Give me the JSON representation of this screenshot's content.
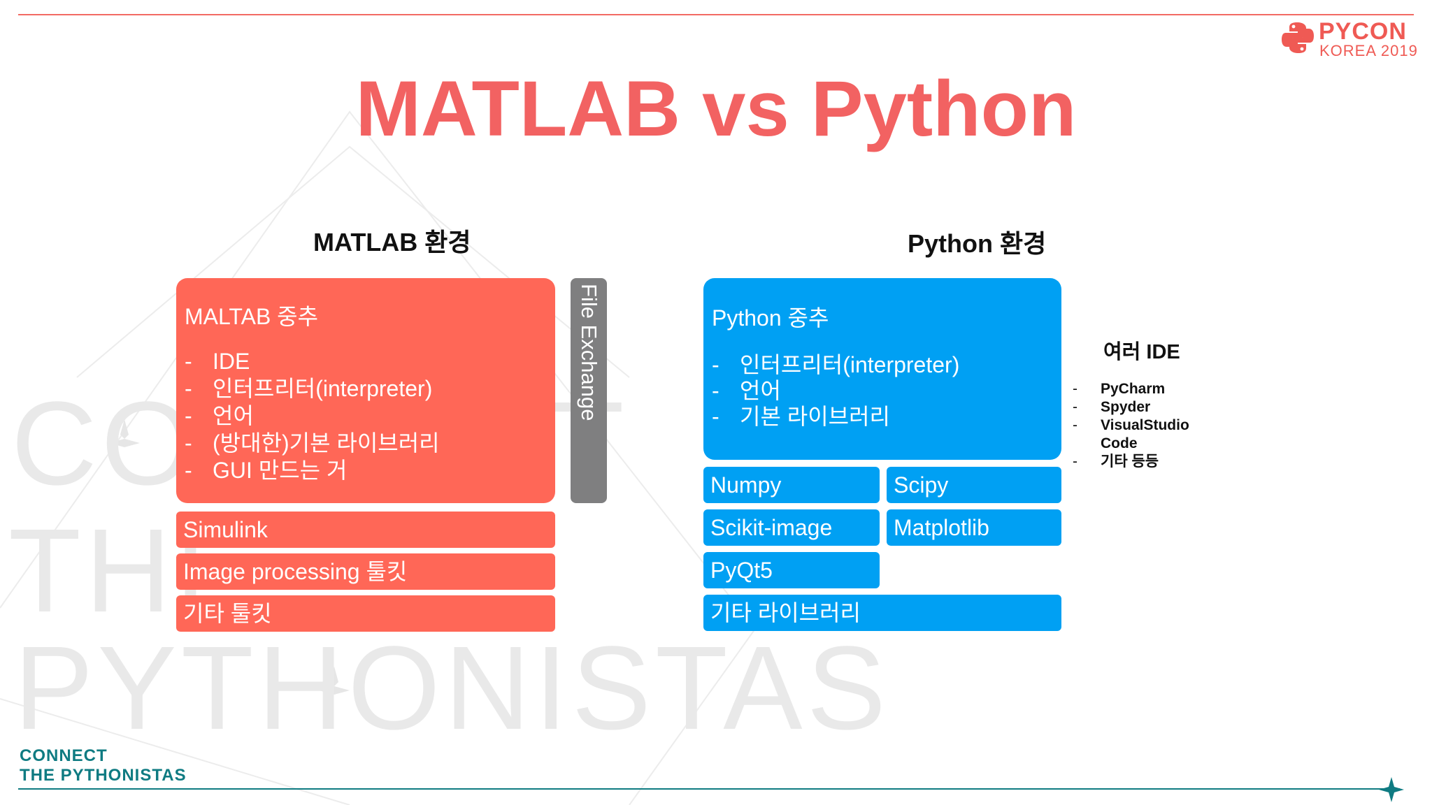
{
  "title": "MATLAB vs Python",
  "logo": {
    "line1": "PYCON",
    "line2": "KOREA 2019"
  },
  "watermark": {
    "line1": "CONNECT",
    "line2": "THE",
    "line3": "PYTHONISTAS"
  },
  "footer": {
    "line1": "CONNECT",
    "line2": "THE PYTHONISTAS"
  },
  "matlab": {
    "heading": "MATLAB 환경",
    "core_title": "MALTAB 중추",
    "core_items": [
      "IDE",
      "인터프리터(interpreter)",
      "언어",
      "(방대한)기본 라이브러리",
      "GUI 만드는 거"
    ],
    "side_label": "File Exchange",
    "toolkits": [
      "Simulink",
      "Image processing 툴킷",
      "기타 툴킷"
    ]
  },
  "python": {
    "heading": "Python 환경",
    "core_title": "Python 중추",
    "core_items": [
      "인터프리터(interpreter)",
      "언어",
      "기본 라이브러리"
    ],
    "libraries": [
      "Numpy",
      "Scipy",
      "Scikit-image",
      "Matplotlib",
      "PyQt5",
      "기타 라이브러리"
    ]
  },
  "ide": {
    "heading": "여러 IDE",
    "items": [
      "PyCharm",
      "Spyder",
      "VisualStudio Code",
      "기타 등등"
    ]
  },
  "colors": {
    "accent": "#f26262",
    "matlab_box": "#ff6757",
    "python_box": "#00a0f3",
    "side_box": "#7f7f80",
    "footer": "#0f7b82"
  }
}
